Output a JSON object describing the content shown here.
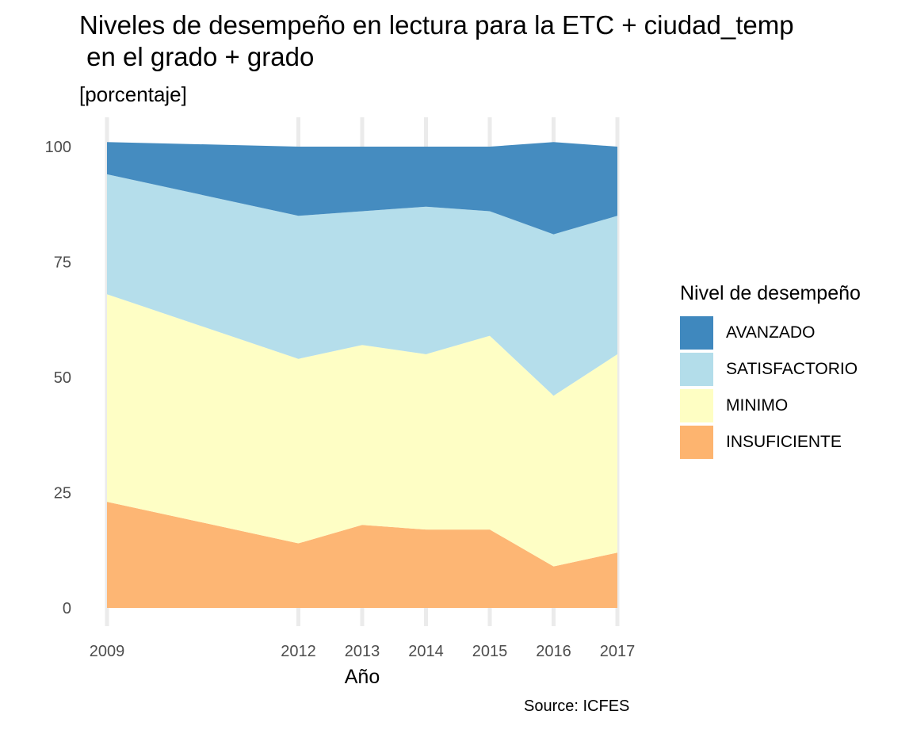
{
  "chart_data": {
    "type": "area",
    "title_line1": "Niveles de desempeño en lectura para la ETC + ciudad_temp",
    "title_line2": " en el grado + grado",
    "subtitle": "[porcentaje]",
    "xlabel": "Año",
    "ylabel": "",
    "caption": "Source: ICFES",
    "x": [
      2009,
      2012,
      2013,
      2014,
      2015,
      2016,
      2017
    ],
    "ylim": [
      0,
      100
    ],
    "yticks": [
      0,
      25,
      50,
      75,
      100
    ],
    "stacked": true,
    "grid": true,
    "legend_title": "Nivel de desempeño",
    "legend_position": "right",
    "series": [
      {
        "name": "INSUFICIENTE",
        "color": "#fdb46f",
        "values": [
          23,
          14,
          18,
          17,
          17,
          9,
          12
        ]
      },
      {
        "name": "MINIMO",
        "color": "#fefec3",
        "values": [
          45,
          40,
          39,
          38,
          42,
          37,
          43
        ]
      },
      {
        "name": "SATISFACTORIO",
        "color": "#b3ddea",
        "values": [
          26,
          31,
          29,
          32,
          27,
          35,
          30
        ]
      },
      {
        "name": "AVANZADO",
        "color": "#3f88be",
        "values": [
          7,
          15,
          14,
          13,
          14,
          20,
          15
        ]
      }
    ]
  }
}
